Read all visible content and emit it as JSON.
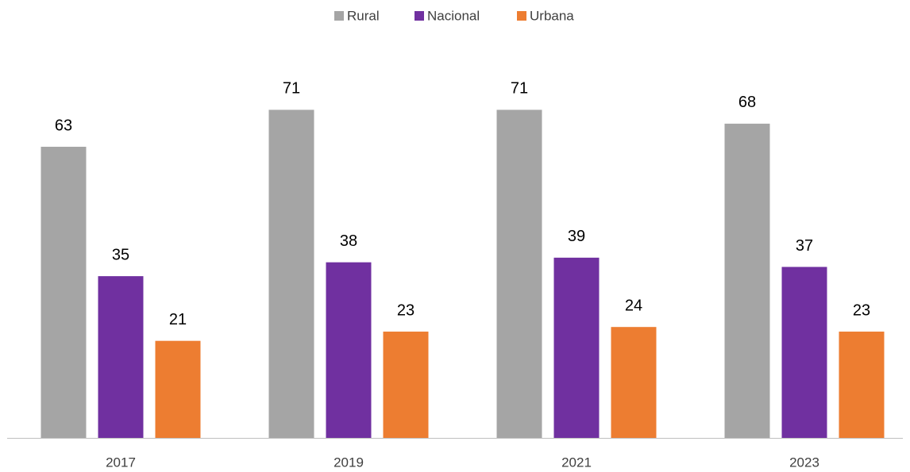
{
  "chart_data": {
    "type": "bar",
    "categories": [
      "2017",
      "2019",
      "2021",
      "2023"
    ],
    "series": [
      {
        "name": "Rural",
        "color": "#a5a5a5",
        "values": [
          63,
          71,
          71,
          68
        ]
      },
      {
        "name": "Nacional",
        "color": "#7030a0",
        "values": [
          35,
          38,
          39,
          37
        ]
      },
      {
        "name": "Urbana",
        "color": "#ed7d31",
        "values": [
          21,
          23,
          24,
          23
        ]
      }
    ],
    "ylim": [
      0,
      80
    ],
    "legend": "top"
  }
}
